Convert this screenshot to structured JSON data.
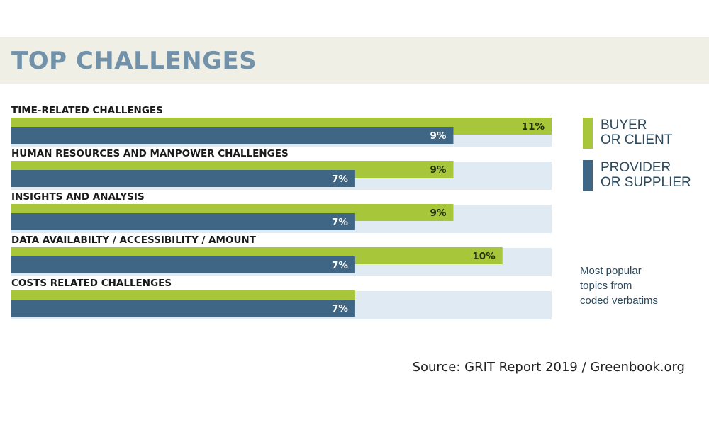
{
  "title": "TOP CHALLENGES",
  "colors": {
    "buyer": "#a8c639",
    "provider": "#3f6785",
    "track": "#dfeaf2",
    "title": "#7292aa",
    "header_band": "#efefe6"
  },
  "legend": {
    "buyer_label": "BUYER\nOR CLIENT",
    "provider_label": "PROVIDER\nOR SUPPLIER"
  },
  "note": "Most popular\ntopics from\ncoded verbatims",
  "source": "Source: GRIT Report 2019 / Greenbook.org",
  "chart_data": {
    "type": "bar",
    "orientation": "horizontal",
    "categories": [
      "TIME-RELATED CHALLENGES",
      "HUMAN RESOURCES AND MANPOWER CHALLENGES",
      "INSIGHTS AND ANALYSIS",
      "DATA AVAILABILTY / ACCESSIBILITY / AMOUNT",
      "COSTS RELATED CHALLENGES"
    ],
    "series": [
      {
        "name": "BUYER OR CLIENT",
        "values": [
          11,
          9,
          9,
          10,
          7
        ],
        "labels": [
          "11%",
          "9%",
          "9%",
          "10%",
          ""
        ]
      },
      {
        "name": "PROVIDER OR SUPPLIER",
        "values": [
          9,
          7,
          7,
          7,
          7
        ],
        "labels": [
          "9%",
          "7%",
          "7%",
          "7%",
          "7%"
        ]
      }
    ],
    "xlim": [
      0,
      11
    ],
    "title": "TOP CHALLENGES",
    "legend_position": "right",
    "grid": false
  }
}
